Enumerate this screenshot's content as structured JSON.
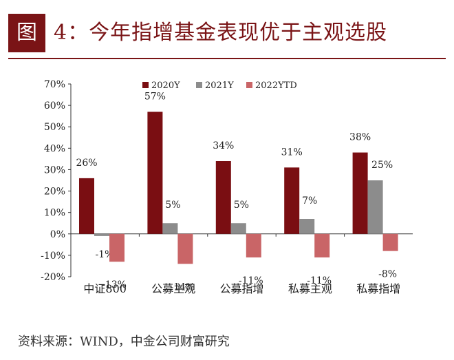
{
  "figure": {
    "tag": "图",
    "title": "4：今年指增基金表现优于主观选股"
  },
  "source": "资料来源：WIND，中金公司财富研究",
  "colors": {
    "accent": "#7a1416",
    "s2020": "#7a0e12",
    "s2021": "#8c8c8c",
    "s2022": "#c96567",
    "axis": "#333333"
  },
  "chart_data": {
    "type": "bar",
    "categories": [
      "中证800",
      "公募主观",
      "公募指增",
      "私募主观",
      "私募指增"
    ],
    "series": [
      {
        "name": "2020Y",
        "values": [
          26,
          57,
          34,
          31,
          38
        ],
        "labels": [
          "26%",
          "57%",
          "34%",
          "31%",
          "38%"
        ]
      },
      {
        "name": "2021Y",
        "values": [
          -1,
          5,
          5,
          7,
          25
        ],
        "labels": [
          "-1%",
          "5%",
          "5%",
          "7%",
          "25%"
        ]
      },
      {
        "name": "2022YTD",
        "values": [
          -13,
          -14,
          -11,
          -11,
          -8
        ],
        "labels": [
          "-13%",
          "-14%",
          "-11%",
          "-11%",
          "-8%"
        ]
      }
    ],
    "ylim": [
      -20,
      70
    ],
    "yticks": [
      "70%",
      "60%",
      "50%",
      "40%",
      "30%",
      "20%",
      "10%",
      "0%",
      "-10%",
      "-20%"
    ],
    "legend_position": "top",
    "grid": false
  }
}
